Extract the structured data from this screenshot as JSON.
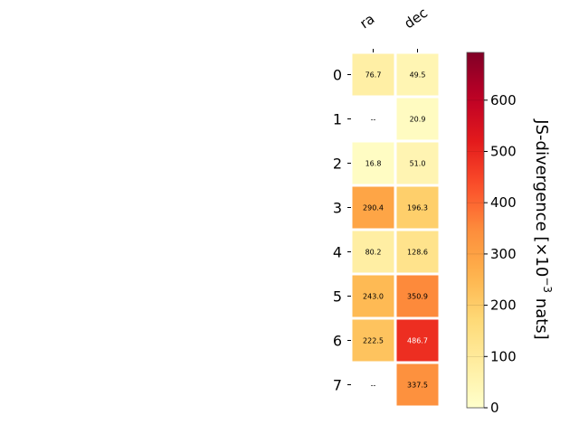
{
  "chart_data": {
    "type": "heatmap",
    "x_categories": [
      "ra",
      "dec"
    ],
    "y_categories": [
      "0",
      "1",
      "2",
      "3",
      "4",
      "5",
      "6",
      "7"
    ],
    "values": [
      [
        76.7,
        49.5
      ],
      [
        null,
        20.9
      ],
      [
        16.8,
        51.0
      ],
      [
        290.4,
        196.3
      ],
      [
        80.2,
        128.6
      ],
      [
        243.0,
        350.9
      ],
      [
        222.5,
        486.7
      ],
      [
        null,
        337.5
      ]
    ],
    "cell_labels": [
      [
        "76.7",
        "49.5"
      ],
      [
        "--",
        "20.9"
      ],
      [
        "16.8",
        "51.0"
      ],
      [
        "290.4",
        "196.3"
      ],
      [
        "80.2",
        "128.6"
      ],
      [
        "243.0",
        "350.9"
      ],
      [
        "222.5",
        "486.7"
      ],
      [
        "--",
        "337.5"
      ]
    ],
    "colorbar": {
      "label": "JS-divergence [×10",
      "label_exp": "−3",
      "label_tail": " nats]",
      "range": [
        0,
        693.1
      ],
      "ticks": [
        0,
        100,
        200,
        300,
        400,
        500,
        600
      ],
      "colormap": "YlOrRd"
    }
  }
}
